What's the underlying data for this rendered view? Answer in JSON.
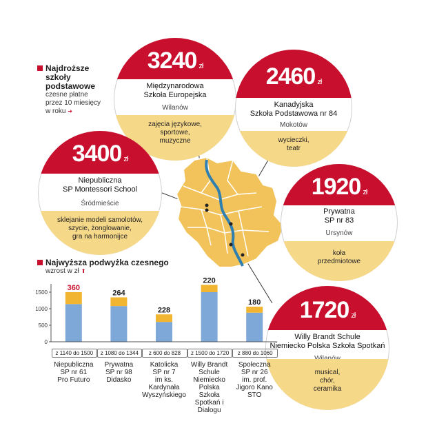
{
  "legend": {
    "title": "Najdroższe szkoły podstawowe",
    "line1": "Najdroższe",
    "line2": "szkoły",
    "line3": "podstawowe",
    "sub1": "czesne płatne",
    "sub2": "przez 10 miesięcy",
    "sub3": "w roku"
  },
  "schools": [
    {
      "price": "3240",
      "unit": "zł",
      "name1": "Międzynarodowa",
      "name2": "Szkoła Europejska",
      "district": "Wilanów",
      "extra": [
        "zajęcia językowe,",
        "sportowe,",
        "muzyczne"
      ]
    },
    {
      "price": "2460",
      "unit": "zł",
      "name1": "Kanadyjska",
      "name2": "Szkoła Podstawowa nr 84",
      "district": "Mokotów",
      "extra": [
        "wycieczki,",
        "teatr"
      ]
    },
    {
      "price": "3400",
      "unit": "zł",
      "name1": "Niepubliczna",
      "name2": "SP Montessori School",
      "district": "Śródmieście",
      "extra": [
        "sklejanie modeli samolotów,",
        "szycie, żonglowanie,",
        "gra na harmonijce"
      ]
    },
    {
      "price": "1920",
      "unit": "zł",
      "name1": "Prywatna",
      "name2": "SP nr 83",
      "district": "Ursynów",
      "extra": [
        "koła",
        "przedmiotowe"
      ]
    },
    {
      "price": "1720",
      "unit": "zł",
      "name1": "Willy Brandt Schule",
      "name2": "Niemiecko Polska Szkoła Spotkań",
      "district": "Wilanów",
      "extra": [
        "musical,",
        "chór,",
        "ceramika"
      ]
    }
  ],
  "chart_title": "Najwyższa podwyżka czesnego",
  "chart_unit": "wzrost w zł",
  "chart_data": {
    "type": "bar",
    "title": "Najwyższa podwyżka czesnego",
    "ylabel": "wzrost w zł",
    "ylim": [
      0,
      1750
    ],
    "yticks": [
      "0",
      "500",
      "1000",
      "1500"
    ],
    "stacked": true,
    "categories": [
      "z 1140 do 1500",
      "z 1080 do 1344",
      "z 600 do 828",
      "z 1500 do 1720",
      "z 880 do 1060"
    ],
    "series": [
      {
        "values": [
          1140,
          1080,
          600,
          1500,
          880
        ],
        "color": "#7ea8d8"
      },
      {
        "values": [
          360,
          264,
          228,
          220,
          180
        ],
        "color": "#f2b532"
      }
    ],
    "increase_labels": [
      "360",
      "264",
      "228",
      "220",
      "180"
    ],
    "school_labels": [
      [
        "Niepubliczna",
        "SP nr 61",
        "Pro Futuro"
      ],
      [
        "Prywatna",
        "SP nr 98",
        "Didasko"
      ],
      [
        "Katolicka",
        "SP nr 7",
        "im ks.",
        "Kardynała",
        "Wyszyńskiego"
      ],
      [
        "Willy Brandt",
        "Schule",
        "Niemiecko",
        "Polska",
        "Szkoła",
        "Spotkań i Dialogu"
      ],
      [
        "Społeczna",
        "SP nr 26",
        "im. prof.",
        "Jigoro Kano STO"
      ]
    ]
  },
  "colors": {
    "accent": "#c8102e",
    "map": "#f2c35a",
    "bar_base": "#7ea8d8",
    "bar_top": "#f2b532"
  }
}
